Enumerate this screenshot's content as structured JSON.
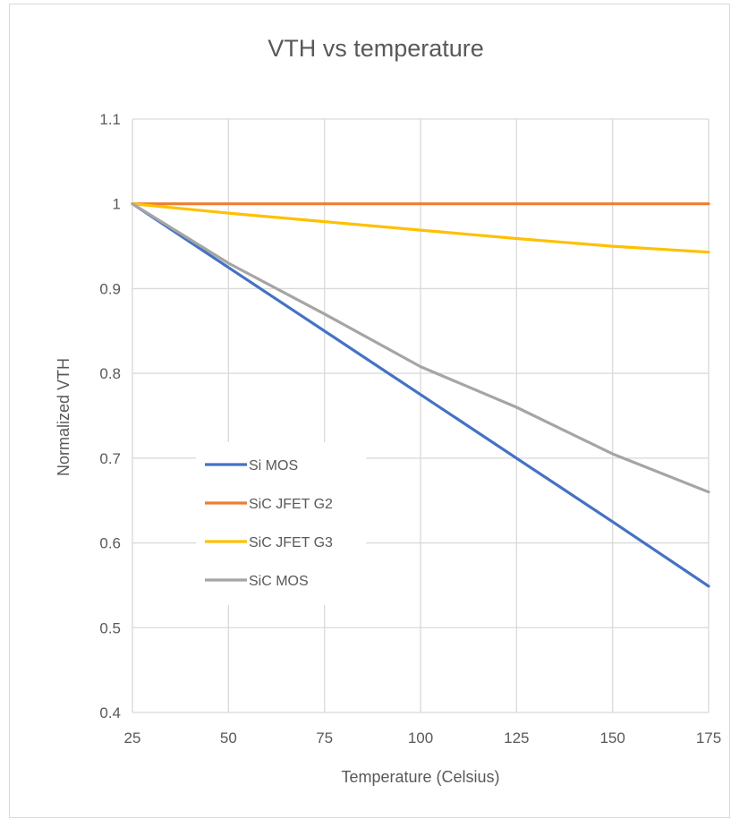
{
  "chart_data": {
    "type": "line",
    "title": "VTH vs temperature",
    "xlabel": "Temperature (Celsius)",
    "ylabel": "Normalized VTH",
    "x": [
      25,
      50,
      75,
      100,
      125,
      150,
      175
    ],
    "xlim": [
      25,
      175
    ],
    "ylim": [
      0.4,
      1.1
    ],
    "x_ticks": [
      "25",
      "50",
      "75",
      "100",
      "125",
      "150",
      "175"
    ],
    "y_ticks": [
      "0.4",
      "0.5",
      "0.6",
      "0.7",
      "0.8",
      "0.9",
      "1",
      "1.1"
    ],
    "grid": true,
    "legend_position": "left-center",
    "series": [
      {
        "name": "Si MOS",
        "color": "#4472C4",
        "values": [
          1.0,
          0.925,
          0.85,
          0.775,
          0.7,
          0.625,
          0.549
        ]
      },
      {
        "name": "SiC JFET G2",
        "color": "#ED7D31",
        "values": [
          1.0,
          1.0,
          1.0,
          1.0,
          1.0,
          1.0,
          1.0
        ]
      },
      {
        "name": "SiC JFET G3",
        "color": "#FFC000",
        "values": [
          1.0,
          0.989,
          0.979,
          0.969,
          0.959,
          0.95,
          0.943
        ]
      },
      {
        "name": "SiC MOS",
        "color": "#A5A5A5",
        "values": [
          1.0,
          0.93,
          0.87,
          0.808,
          0.76,
          0.705,
          0.66
        ]
      }
    ]
  }
}
